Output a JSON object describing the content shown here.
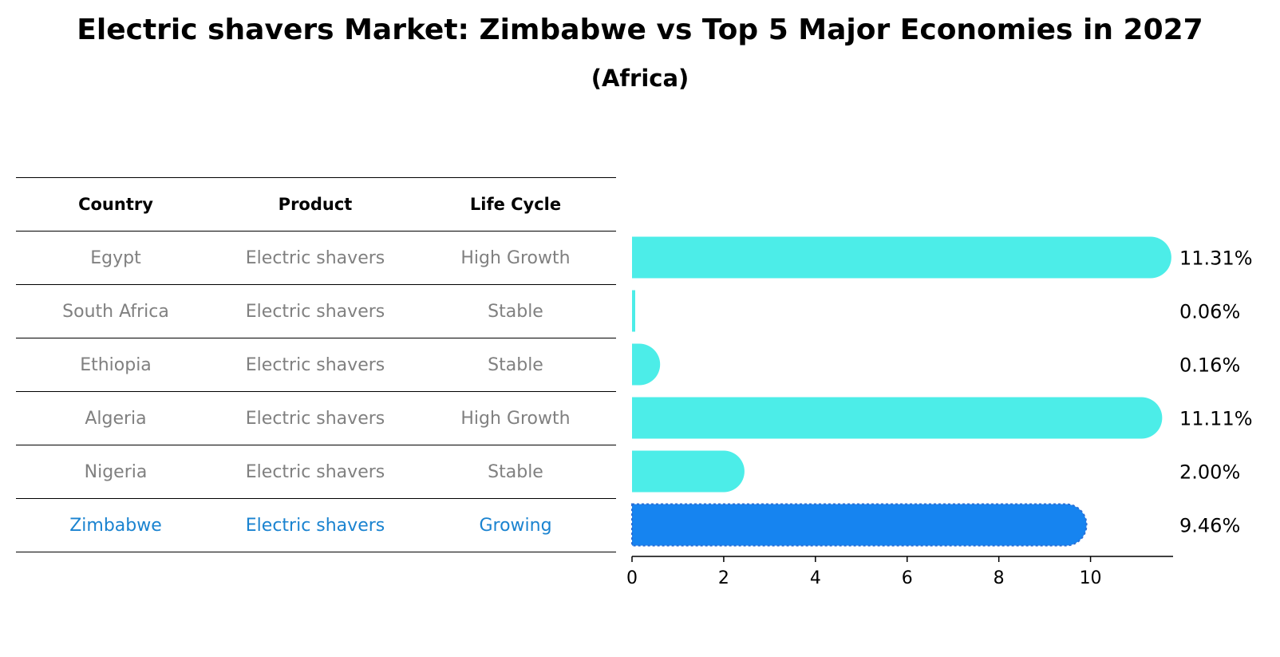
{
  "chart_data": {
    "type": "bar",
    "title": "Electric shavers Market: Zimbabwe vs Top 5 Major Economies in 2027",
    "subtitle": "(Africa)",
    "table": {
      "headers": [
        "Country",
        "Product",
        "Life Cycle"
      ],
      "rows": [
        {
          "country": "Egypt",
          "product": "Electric shavers",
          "life_cycle": "High Growth"
        },
        {
          "country": "South Africa",
          "product": "Electric shavers",
          "life_cycle": "Stable"
        },
        {
          "country": "Ethiopia",
          "product": "Electric shavers",
          "life_cycle": "Stable"
        },
        {
          "country": "Algeria",
          "product": "Electric shavers",
          "life_cycle": "High Growth"
        },
        {
          "country": "Nigeria",
          "product": "Electric shavers",
          "life_cycle": "Stable"
        },
        {
          "country": "Zimbabwe",
          "product": "Electric shavers",
          "life_cycle": "Growing"
        }
      ]
    },
    "categories": [
      "Egypt",
      "South Africa",
      "Ethiopia",
      "Algeria",
      "Nigeria",
      "Zimbabwe"
    ],
    "values": [
      11.31,
      0.06,
      0.16,
      11.11,
      2.0,
      9.46
    ],
    "value_labels": [
      "11.31%",
      "0.06%",
      "0.16%",
      "11.11%",
      "2.00%",
      "9.46%"
    ],
    "highlight": "Zimbabwe",
    "xlim": [
      0,
      11.8
    ],
    "xticks": [
      0,
      2,
      4,
      6,
      8,
      10
    ],
    "colors": {
      "bar": "#4cede8",
      "highlight": "#1684f0",
      "highlight_text": "#1a83d0",
      "table_text": "#808080"
    }
  }
}
